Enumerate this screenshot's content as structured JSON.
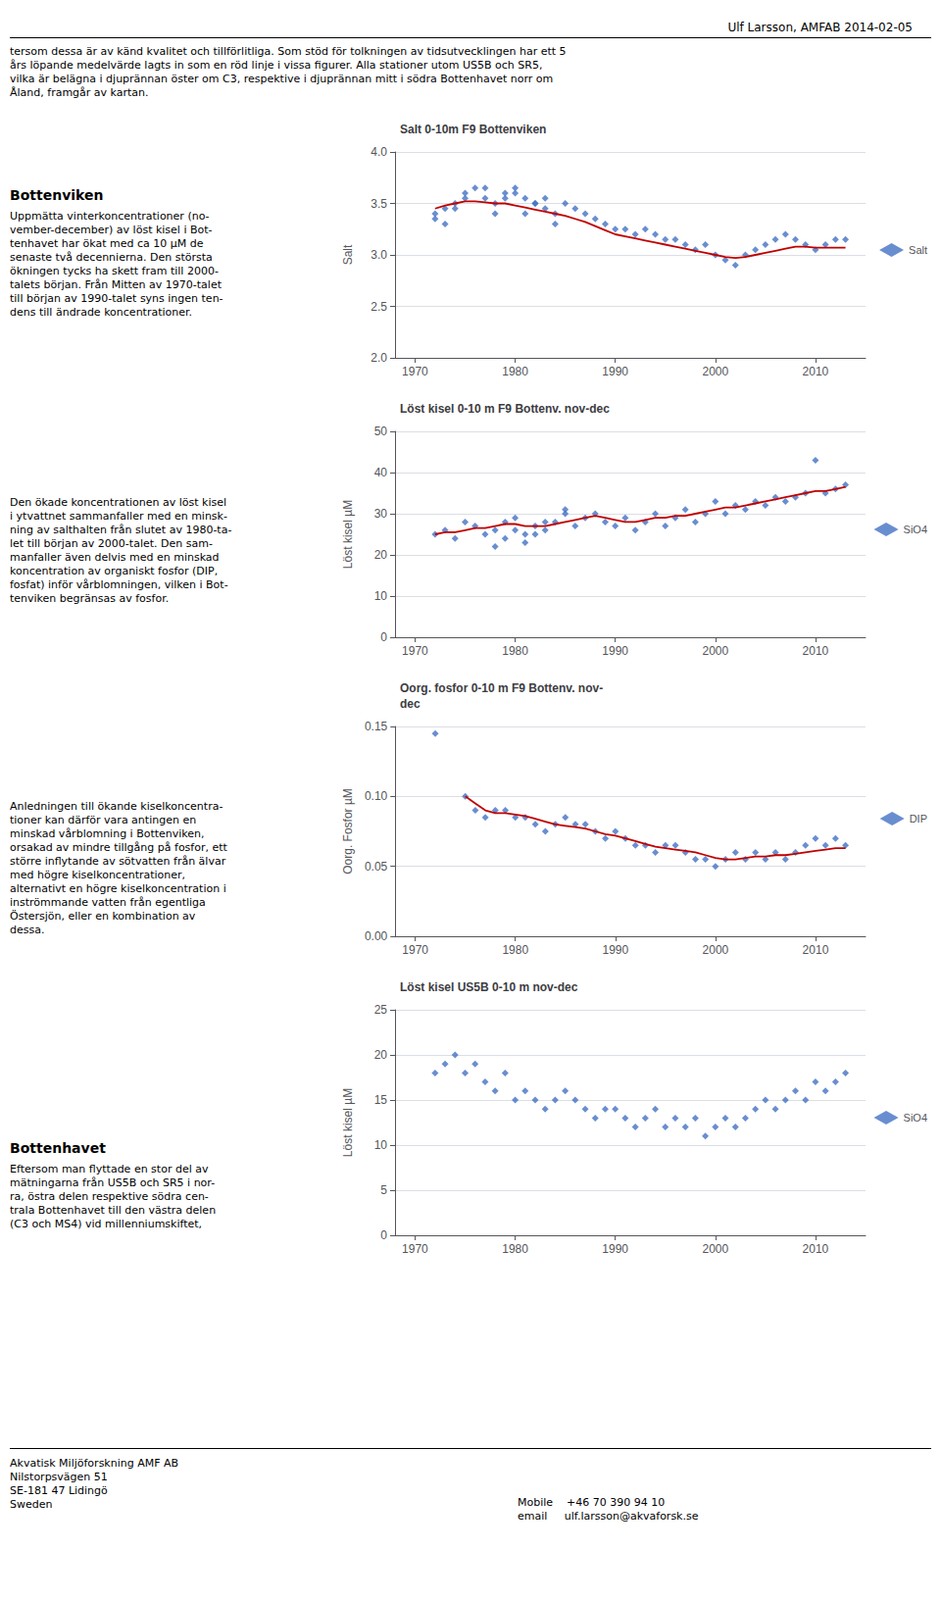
{
  "annotations": [
    "Ulf Larsson, AMFAB 2014-02-05",
    "tersom dessa är av känd kvalitet och tillförlitliga. Som stöd för tolkningen av tidsutvecklingen har ett 5\nårs löpande medelvärde lagts in som en röd linje i vissa figurer. Alla stationer utom US5B och SR5,\nvilka är belägna i djuprännan öster om C3, respektive i djuprännan mitt i södra Bottenhavet norr om\nÅland, framgår av kartan.",
    "Bottenviken",
    "Uppmätta vinterkoncentrationer (no-\nvember-december) av löst kisel i Bot-\ntenhavet har ökat med ca 10 µM de\nsenaste två decennierna. Den största\nökningen tycks ha skett fram till 2000-\ntalets början. Från Mitten av 1970-talet\ntill början av 1990-talet syns ingen ten-\ndens till ändrade koncentrationer.",
    "Den ökade koncentrationen av löst kisel\ni ytvattnet sammanfaller med en minsk-\nning av salthalten från slutet av 1980-ta-\nlet till början av 2000-talet. Den sam-\nmanfaller även delvis med en minskad\nkoncentration av organiskt fosfor (DIP,\nfosfat) inför vårblomningen, vilken i Bot-\ntenviken begränsas av fosfor.",
    "Anledningen till ökande kiselkoncentra-\ntioner kan därför vara antingen en\nminskad vårblomning i Bottenviken,\norsakad av mindre tillgång på fosfor, ett\nstörre inflytande av sötvatten från älvar\nmed högre kiselkoncentrationer,\nalternativt en högre kiselkoncentration i\ninströmmande vatten från egentliga\nÖstersjön, eller en kombination av\ndessa.",
    "Bottenhavet",
    "Eftersom man flyttade en stor del av\nmätningarna från US5B och SR5 i nor-\nra, östra delen respektive södra cen-\ntrala Bottenhavet till den västra delen\n(C3 och MS4) vid millenniumskiftet,",
    "Akvatisk Miljöforskning AMF AB\nNilstorpsvägen 51\nSE-181 47 Lidingö\nSweden",
    "Mobile    +46 70 390 94 10\nemail     ulf.larsson@akvaforsk.se"
  ],
  "chart_data": [
    {
      "type": "scatter",
      "title": "Salt 0-10m F9 Bottenviken",
      "ylabel": "Salt",
      "xlim": [
        1968,
        2015
      ],
      "xticks": [
        1970,
        1980,
        1990,
        2000,
        2010
      ],
      "ylim": [
        2.0,
        4.0
      ],
      "yticks": [
        {
          "value": 2.0,
          "label": "2.0"
        },
        2.5,
        {
          "value": 3.0,
          "label": "3.0"
        },
        3.5,
        {
          "value": 4.0,
          "label": "4.0"
        }
      ],
      "grid": true,
      "legend": "right",
      "series": [
        {
          "name": "Salt",
          "type": "scatter",
          "color": "#4472C4",
          "marker": "diamond",
          "x": [
            1972,
            1973,
            1974,
            1975,
            1976,
            1977,
            1978,
            1979,
            1980,
            1981,
            1982,
            1983,
            1984,
            1985,
            1986,
            1987,
            1988,
            1989,
            1990,
            1991,
            1992,
            1993,
            1994,
            1995,
            1996,
            1997,
            1998,
            1999,
            2000,
            2001,
            2002,
            2003,
            2004,
            2005,
            2006,
            2007,
            2008,
            2009,
            2010,
            2011,
            2012,
            2013,
            1972,
            1973,
            1974,
            1975,
            1977,
            1978,
            1979,
            1980,
            1981,
            1982,
            1983,
            1984
          ],
          "values": [
            3.35,
            3.45,
            3.5,
            3.6,
            3.65,
            3.55,
            3.5,
            3.55,
            3.6,
            3.55,
            3.5,
            3.45,
            3.4,
            3.5,
            3.45,
            3.4,
            3.35,
            3.3,
            3.25,
            3.25,
            3.2,
            3.25,
            3.2,
            3.15,
            3.15,
            3.1,
            3.05,
            3.1,
            3.0,
            2.95,
            2.9,
            3.0,
            3.05,
            3.1,
            3.15,
            3.2,
            3.15,
            3.1,
            3.05,
            3.1,
            3.15,
            3.15,
            3.4,
            3.3,
            3.45,
            3.55,
            3.65,
            3.4,
            3.6,
            3.65,
            3.4,
            3.5,
            3.55,
            3.3
          ]
        },
        {
          "type": "line",
          "color": "#C00000",
          "line_style": "solid",
          "x": [
            1972,
            1973,
            1974,
            1975,
            1976,
            1977,
            1978,
            1979,
            1980,
            1981,
            1982,
            1983,
            1984,
            1985,
            1986,
            1987,
            1988,
            1989,
            1990,
            1991,
            1992,
            1993,
            1994,
            1995,
            1996,
            1997,
            1998,
            1999,
            2000,
            2001,
            2002,
            2003,
            2004,
            2005,
            2006,
            2007,
            2008,
            2009,
            2010,
            2011,
            2012,
            2013
          ],
          "values": [
            3.45,
            3.48,
            3.5,
            3.52,
            3.52,
            3.51,
            3.5,
            3.5,
            3.48,
            3.46,
            3.44,
            3.42,
            3.4,
            3.38,
            3.35,
            3.32,
            3.28,
            3.24,
            3.2,
            3.18,
            3.16,
            3.14,
            3.12,
            3.1,
            3.08,
            3.06,
            3.04,
            3.02,
            3.0,
            2.98,
            2.97,
            2.98,
            3.0,
            3.02,
            3.04,
            3.06,
            3.08,
            3.08,
            3.07,
            3.07,
            3.07,
            3.07
          ]
        }
      ]
    },
    {
      "type": "scatter",
      "title": "Löst kisel 0-10 m F9 Bottenv. nov-dec",
      "ylabel": "Löst kisel µM",
      "xlim": [
        1968,
        2015
      ],
      "xticks": [
        1970,
        1980,
        1990,
        2000,
        2010
      ],
      "ylim": [
        0,
        50
      ],
      "yticks": [
        0,
        10,
        20,
        30,
        40,
        50
      ],
      "grid": true,
      "legend": "right",
      "series": [
        {
          "name": "SiO4",
          "type": "scatter",
          "color": "#4472C4",
          "marker": "diamond",
          "x": [
            1972,
            1973,
            1974,
            1975,
            1976,
            1977,
            1978,
            1979,
            1980,
            1981,
            1982,
            1983,
            1984,
            1985,
            1986,
            1987,
            1988,
            1989,
            1990,
            1991,
            1992,
            1993,
            1994,
            1995,
            1996,
            1997,
            1998,
            1999,
            2000,
            2001,
            2002,
            2003,
            2004,
            2005,
            2006,
            2007,
            2008,
            2009,
            2010,
            2011,
            2012,
            2013,
            1978,
            1979,
            1980,
            1981,
            1982,
            1983,
            1985
          ],
          "values": [
            25,
            26,
            24,
            28,
            27,
            25,
            26,
            28,
            29,
            25,
            27,
            26,
            28,
            30,
            27,
            29,
            30,
            28,
            27,
            29,
            26,
            28,
            30,
            27,
            29,
            31,
            28,
            30,
            33,
            30,
            32,
            31,
            33,
            32,
            34,
            33,
            34,
            35,
            43,
            35,
            36,
            37,
            22,
            24,
            26,
            23,
            25,
            28,
            31
          ]
        },
        {
          "type": "line",
          "color": "#C00000",
          "line_style": "solid",
          "x": [
            1972,
            1973,
            1974,
            1975,
            1976,
            1977,
            1978,
            1979,
            1980,
            1981,
            1982,
            1983,
            1984,
            1985,
            1986,
            1987,
            1988,
            1989,
            1990,
            1991,
            1992,
            1993,
            1994,
            1995,
            1996,
            1997,
            1998,
            1999,
            2000,
            2001,
            2002,
            2003,
            2004,
            2005,
            2006,
            2007,
            2008,
            2009,
            2010,
            2011,
            2012,
            2013
          ],
          "values": [
            25,
            25.5,
            25.5,
            26,
            26.5,
            26.5,
            27,
            27.5,
            27.5,
            27,
            27,
            27,
            27.5,
            28,
            28.5,
            29,
            29.5,
            29,
            28.5,
            28,
            28,
            28.5,
            29,
            29,
            29.5,
            29.5,
            30,
            30.5,
            31,
            31.5,
            31.5,
            32,
            32.5,
            33,
            33.5,
            34,
            34.5,
            35,
            35.5,
            35.5,
            36,
            36.5
          ]
        }
      ]
    },
    {
      "type": "scatter",
      "title": "Oorg. fosfor 0-10 m F9 Bottenv. nov-\ndec",
      "ylabel": "Oorg. Fosfor µM",
      "xlim": [
        1968,
        2015
      ],
      "xticks": [
        1970,
        1980,
        1990,
        2000,
        2010
      ],
      "ylim": [
        0,
        0.15
      ],
      "yticks": [
        {
          "value": 0,
          "label": "0.00"
        },
        {
          "value": 0.05,
          "label": "0.05"
        },
        {
          "value": 0.1,
          "label": "0.10"
        },
        {
          "value": 0.15,
          "label": "0.15"
        }
      ],
      "grid": true,
      "legend": "right",
      "series": [
        {
          "name": "DIP",
          "type": "scatter",
          "color": "#4472C4",
          "marker": "diamond",
          "x": [
            1972,
            1975,
            1976,
            1977,
            1978,
            1979,
            1980,
            1981,
            1982,
            1983,
            1984,
            1985,
            1986,
            1987,
            1988,
            1989,
            1990,
            1991,
            1992,
            1993,
            1994,
            1995,
            1996,
            1997,
            1998,
            1999,
            2000,
            2001,
            2002,
            2003,
            2004,
            2005,
            2006,
            2007,
            2008,
            2009,
            2010,
            2011,
            2012,
            2013
          ],
          "values": [
            0.145,
            0.1,
            0.09,
            0.085,
            0.09,
            0.09,
            0.085,
            0.085,
            0.08,
            0.075,
            0.08,
            0.085,
            0.08,
            0.08,
            0.075,
            0.07,
            0.075,
            0.07,
            0.065,
            0.065,
            0.06,
            0.065,
            0.065,
            0.06,
            0.055,
            0.055,
            0.05,
            0.055,
            0.06,
            0.055,
            0.06,
            0.055,
            0.06,
            0.055,
            0.06,
            0.065,
            0.07,
            0.065,
            0.07,
            0.065
          ]
        },
        {
          "type": "line",
          "color": "#C00000",
          "line_style": "solid",
          "x": [
            1975,
            1976,
            1977,
            1978,
            1979,
            1980,
            1981,
            1982,
            1983,
            1984,
            1985,
            1986,
            1987,
            1988,
            1989,
            1990,
            1991,
            1992,
            1993,
            1994,
            1995,
            1996,
            1997,
            1998,
            1999,
            2000,
            2001,
            2002,
            2003,
            2004,
            2005,
            2006,
            2007,
            2008,
            2009,
            2010,
            2011,
            2012,
            2013
          ],
          "values": [
            0.1,
            0.095,
            0.09,
            0.088,
            0.088,
            0.087,
            0.086,
            0.084,
            0.082,
            0.08,
            0.079,
            0.078,
            0.077,
            0.075,
            0.073,
            0.072,
            0.07,
            0.068,
            0.066,
            0.064,
            0.063,
            0.062,
            0.061,
            0.06,
            0.058,
            0.056,
            0.055,
            0.055,
            0.056,
            0.057,
            0.057,
            0.058,
            0.058,
            0.059,
            0.06,
            0.061,
            0.062,
            0.063,
            0.063
          ]
        }
      ]
    },
    {
      "type": "scatter",
      "title": "Löst kisel US5B 0-10 m nov-dec",
      "ylabel": "Löst kisel µM",
      "xlim": [
        1968,
        2015
      ],
      "xticks": [
        1970,
        1980,
        1990,
        2000,
        2010
      ],
      "ylim": [
        0,
        25
      ],
      "yticks": [
        0,
        5,
        10,
        15,
        20,
        25
      ],
      "grid": true,
      "legend": "right",
      "series": [
        {
          "name": "SiO4",
          "type": "scatter",
          "color": "#4472C4",
          "marker": "diamond",
          "x": [
            1972,
            1973,
            1974,
            1975,
            1976,
            1977,
            1978,
            1979,
            1980,
            1981,
            1982,
            1983,
            1984,
            1985,
            1986,
            1987,
            1988,
            1989,
            1990,
            1991,
            1992,
            1993,
            1994,
            1995,
            1996,
            1997,
            1998,
            1999,
            2000,
            2001,
            2002,
            2003,
            2004,
            2005,
            2006,
            2007,
            2008,
            2009,
            2010,
            2011,
            2012,
            2013
          ],
          "values": [
            18,
            19,
            20,
            18,
            19,
            17,
            16,
            18,
            15,
            16,
            15,
            14,
            15,
            16,
            15,
            14,
            13,
            14,
            14,
            13,
            12,
            13,
            14,
            12,
            13,
            12,
            13,
            11,
            12,
            13,
            12,
            13,
            14,
            15,
            14,
            15,
            16,
            15,
            17,
            16,
            17,
            18
          ]
        }
      ]
    }
  ]
}
